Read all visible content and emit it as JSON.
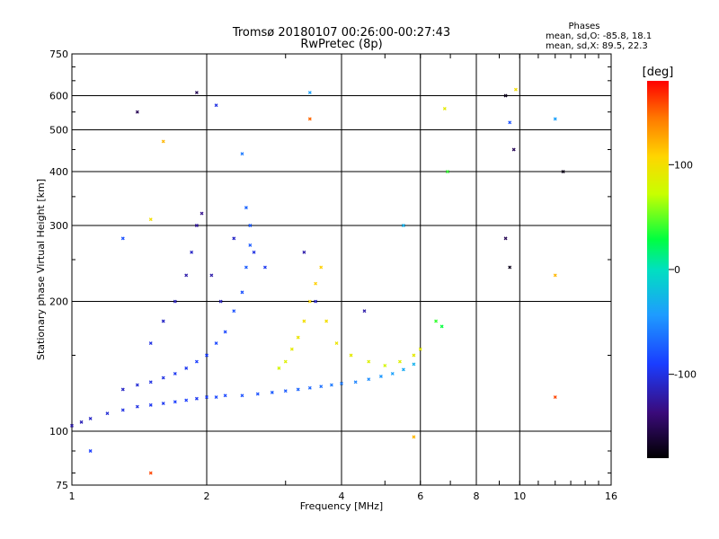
{
  "chart_data": {
    "type": "scatter",
    "title": "Tromsø 20180107 00:26:00-00:27:43",
    "subtitle": "RwPretec (8p)",
    "xlabel": "Frequency [MHz]",
    "ylabel": "Stationary phase Virtual Height [km]",
    "xscale": "log2",
    "yscale": "log",
    "xlim": [
      1,
      16
    ],
    "ylim": [
      75,
      750
    ],
    "grid": true,
    "x_ticks": [
      1,
      2,
      4,
      6,
      8,
      10,
      16
    ],
    "x_tick_labels": [
      "1",
      "2",
      "4",
      "6",
      "8",
      "10",
      "16"
    ],
    "y_ticks": [
      75,
      100,
      200,
      300,
      400,
      500,
      600,
      750
    ],
    "y_tick_labels": [
      "75",
      "100",
      "200",
      "300",
      "400",
      "500",
      "600",
      "750"
    ],
    "phases": {
      "title": "Phases",
      "line_o": "mean, sd,O: -85.8, 18.1",
      "line_x": "mean, sd,X:  89.5, 22.3"
    },
    "colorbar": {
      "label": "[deg]",
      "range": [
        -180,
        180
      ],
      "ticks": [
        100,
        0,
        -100
      ],
      "tick_labels": [
        "100",
        "0",
        "-100"
      ]
    },
    "series": [
      {
        "description_key": "o_trace_low",
        "points": [
          [
            1.0,
            103,
            -120
          ],
          [
            1.05,
            105,
            -115
          ],
          [
            1.1,
            107,
            -110
          ],
          [
            1.2,
            110,
            -105
          ],
          [
            1.3,
            112,
            -100
          ],
          [
            1.4,
            114,
            -100
          ],
          [
            1.5,
            115,
            -95
          ],
          [
            1.6,
            116,
            -95
          ],
          [
            1.7,
            117,
            -90
          ],
          [
            1.8,
            118,
            -90
          ],
          [
            1.9,
            119,
            -95
          ],
          [
            2.0,
            120,
            -90
          ],
          [
            2.1,
            120,
            -85
          ],
          [
            2.2,
            121,
            -85
          ],
          [
            2.4,
            121,
            -80
          ],
          [
            2.6,
            122,
            -80
          ],
          [
            2.8,
            123,
            -75
          ],
          [
            3.0,
            124,
            -75
          ],
          [
            3.2,
            125,
            -70
          ],
          [
            3.4,
            126,
            -70
          ],
          [
            3.6,
            127,
            -65
          ],
          [
            3.8,
            128,
            -60
          ],
          [
            4.0,
            129,
            -60
          ],
          [
            4.3,
            130,
            -55
          ],
          [
            4.6,
            132,
            -50
          ],
          [
            4.9,
            134,
            -45
          ],
          [
            5.2,
            136,
            -40
          ],
          [
            5.5,
            139,
            -35
          ],
          [
            5.8,
            143,
            -30
          ]
        ]
      },
      {
        "description_key": "o_trace_mid",
        "points": [
          [
            1.3,
            125,
            -110
          ],
          [
            1.4,
            128,
            -105
          ],
          [
            1.5,
            130,
            -100
          ],
          [
            1.6,
            133,
            -100
          ],
          [
            1.7,
            136,
            -95
          ],
          [
            1.8,
            140,
            -95
          ],
          [
            1.9,
            145,
            -90
          ],
          [
            2.0,
            150,
            -90
          ],
          [
            2.1,
            160,
            -85
          ],
          [
            2.2,
            170,
            -85
          ],
          [
            2.3,
            190,
            -80
          ],
          [
            2.4,
            210,
            -80
          ],
          [
            2.45,
            240,
            -75
          ],
          [
            2.5,
            270,
            -75
          ],
          [
            2.5,
            300,
            -75
          ],
          [
            2.45,
            330,
            -70
          ]
        ]
      },
      {
        "description_key": "x_trace",
        "points": [
          [
            2.9,
            140,
            80
          ],
          [
            3.0,
            145,
            85
          ],
          [
            3.1,
            155,
            90
          ],
          [
            3.2,
            165,
            95
          ],
          [
            3.3,
            180,
            100
          ],
          [
            3.4,
            200,
            105
          ],
          [
            3.5,
            220,
            110
          ],
          [
            3.6,
            240,
            110
          ],
          [
            3.7,
            180,
            100
          ],
          [
            3.9,
            160,
            95
          ],
          [
            4.2,
            150,
            90
          ],
          [
            4.6,
            145,
            85
          ],
          [
            5.0,
            142,
            80
          ],
          [
            5.4,
            145,
            85
          ],
          [
            5.8,
            150,
            90
          ],
          [
            6.0,
            155,
            90
          ]
        ]
      },
      {
        "description_key": "scattered_f_region",
        "points": [
          [
            1.5,
            160,
            -100
          ],
          [
            1.6,
            180,
            -110
          ],
          [
            1.7,
            200,
            -115
          ],
          [
            1.8,
            230,
            -120
          ],
          [
            1.85,
            260,
            -110
          ],
          [
            1.9,
            300,
            -125
          ],
          [
            1.95,
            320,
            -130
          ],
          [
            2.05,
            230,
            -120
          ],
          [
            2.15,
            200,
            -115
          ],
          [
            2.3,
            280,
            -110
          ],
          [
            2.55,
            260,
            -100
          ],
          [
            2.7,
            240,
            -95
          ],
          [
            3.3,
            260,
            -120
          ],
          [
            3.5,
            200,
            -110
          ],
          [
            4.5,
            190,
            -120
          ],
          [
            6.5,
            180,
            40
          ],
          [
            6.7,
            175,
            30
          ]
        ]
      },
      {
        "description_key": "sparse_outliers",
        "points": [
          [
            1.9,
            610,
            -150
          ],
          [
            2.1,
            570,
            -100
          ],
          [
            2.4,
            440,
            -60
          ],
          [
            3.4,
            530,
            150
          ],
          [
            3.4,
            610,
            -40
          ],
          [
            6.8,
            560,
            90
          ],
          [
            6.9,
            400,
            40
          ],
          [
            9.3,
            600,
            -170
          ],
          [
            9.5,
            520,
            -80
          ],
          [
            9.7,
            450,
            -150
          ],
          [
            9.8,
            620,
            100
          ],
          [
            12.0,
            530,
            -40
          ],
          [
            12.5,
            400,
            -170
          ],
          [
            1.3,
            280,
            -80
          ],
          [
            1.5,
            310,
            100
          ],
          [
            1.6,
            470,
            120
          ],
          [
            1.4,
            550,
            -150
          ],
          [
            1.5,
            80,
            160
          ],
          [
            1.1,
            90,
            -90
          ],
          [
            5.5,
            300,
            -30
          ],
          [
            5.8,
            97,
            120
          ],
          [
            12.0,
            120,
            160
          ],
          [
            12.0,
            230,
            120
          ],
          [
            9.5,
            240,
            -170
          ],
          [
            9.3,
            280,
            -150
          ]
        ]
      }
    ]
  }
}
